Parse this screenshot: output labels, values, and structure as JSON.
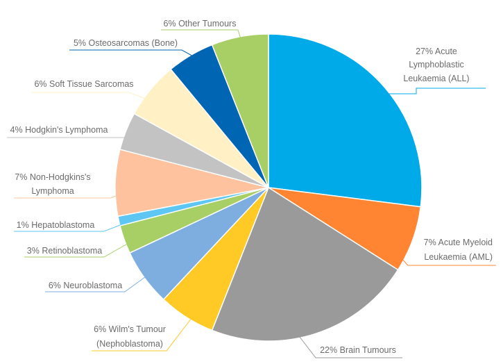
{
  "chart_data": {
    "type": "pie",
    "title": "",
    "start_angle_deg": 0,
    "direction": "clockwise",
    "slices": [
      {
        "label": "27% Acute Lymphoblastic Leukaemia (ALL)",
        "value": 27,
        "color": "#00a9e8"
      },
      {
        "label": "7% Acute Myeloid Leukaemia (AML)",
        "value": 7,
        "color": "#ff8533"
      },
      {
        "label": "22% Brain Tumours",
        "value": 22,
        "color": "#9a9a9a"
      },
      {
        "label": "6% Wilm's Tumour (Nephoblastoma)",
        "value": 6,
        "color": "#ffc926"
      },
      {
        "label": "6% Neuroblastoma",
        "value": 6,
        "color": "#7eaee0"
      },
      {
        "label": "3% Retinoblastoma",
        "value": 3,
        "color": "#a8cf66"
      },
      {
        "label": "1% Hepatoblastoma",
        "value": 1,
        "color": "#5ec6f2"
      },
      {
        "label": "7% Non-Hodgkins's Lymphoma",
        "value": 7,
        "color": "#fec39e"
      },
      {
        "label": "4% Hodgkin's Lymphoma",
        "value": 4,
        "color": "#c3c3c3"
      },
      {
        "label": "6% Soft Tissue Sarcomas",
        "value": 6,
        "color": "#fff0c6"
      },
      {
        "label": "5% Osteosarcomas (Bone)",
        "value": 5,
        "color": "#0066b3"
      },
      {
        "label": "6% Other Tumours",
        "value": 6,
        "color": "#a8cf66"
      }
    ]
  },
  "labels": {
    "all_1": "27% Acute",
    "all_2": "Lymphoblastic",
    "all_3": "Leukaemia (ALL)",
    "aml_1": "7% Acute Myeloid",
    "aml_2": "Leukaemia (AML)",
    "brain": "22% Brain Tumours",
    "wilm_1": "6% Wilm's Tumour",
    "wilm_2": "(Nephoblastoma)",
    "neuro": "6% Neuroblastoma",
    "retino": "3% Retinoblastoma",
    "hepato": "1% Hepatoblastoma",
    "nhl_1": "7% Non-Hodgkins's",
    "nhl_2": "Lymphoma",
    "hodgkin": "4% Hodgkin's Lymphoma",
    "soft": "6% Soft Tissue Sarcomas",
    "osteo": "5% Osteosarcomas (Bone)",
    "other": "6% Other Tumours"
  }
}
